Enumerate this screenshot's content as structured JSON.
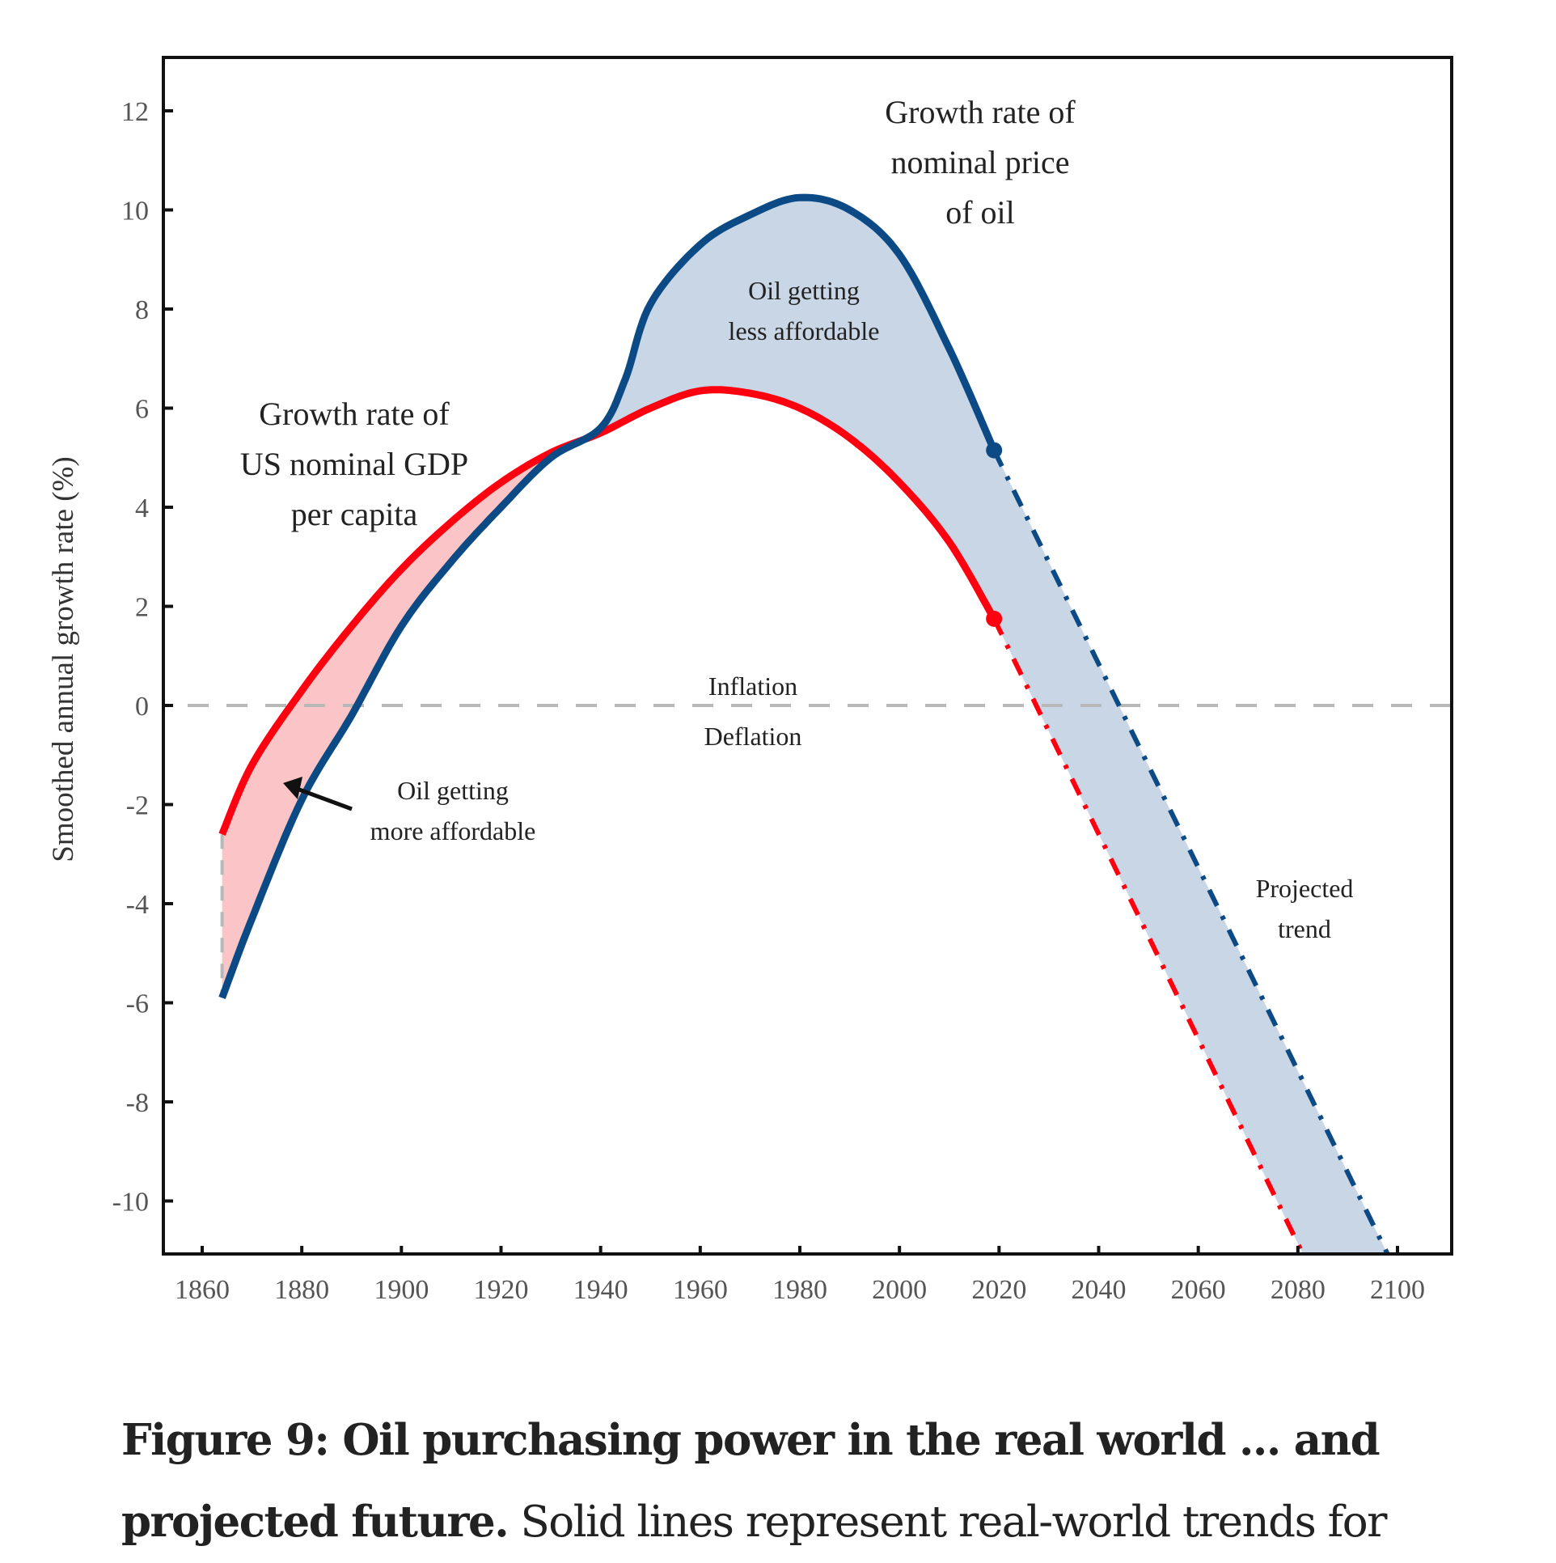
{
  "chart_data": {
    "type": "line",
    "title": "",
    "xlabel": "",
    "ylabel": "Smoothed annual growth rate (%)",
    "xlim": [
      1850,
      2116
    ],
    "ylim": [
      -11.07,
      13.1
    ],
    "x_ticks": [
      1860,
      1880,
      1900,
      1920,
      1940,
      1960,
      1980,
      2000,
      2020,
      2040,
      2060,
      2080,
      2100
    ],
    "y_ticks": [
      12,
      10,
      8,
      6,
      4,
      2,
      0,
      -2,
      -4,
      -6,
      -8,
      -10
    ],
    "grid": false,
    "reference_line": {
      "y": 0,
      "style": "dashed",
      "color": "#b8b8b8",
      "label_above": "Inflation",
      "label_below": "Deflation"
    },
    "series": [
      {
        "name": "Growth rate of US nominal GDP per capita",
        "color": "#ff0010",
        "style": "solid",
        "x": [
          1864,
          1870,
          1880,
          1890,
          1900,
          1910,
          1920,
          1930,
          1940,
          1950,
          1960,
          1970,
          1980,
          1990,
          2000,
          2010,
          2019
        ],
        "y": [
          -2.6,
          -1.2,
          0.3,
          1.6,
          2.75,
          3.7,
          4.5,
          5.1,
          5.5,
          6.0,
          6.35,
          6.3,
          6.0,
          5.4,
          4.5,
          3.3,
          1.75
        ],
        "endpoint_marker": true,
        "projection": {
          "style": "dash-dot",
          "x": [
            2019,
            2081
          ],
          "y": [
            1.75,
            -11.07
          ]
        }
      },
      {
        "name": "Growth rate of nominal price of oil",
        "color": "#0b4a84",
        "style": "solid",
        "x": [
          1864,
          1870,
          1880,
          1890,
          1900,
          1910,
          1920,
          1930,
          1940,
          1945,
          1950,
          1960,
          1970,
          1980,
          1990,
          2000,
          2010,
          2019
        ],
        "y": [
          -5.9,
          -4.3,
          -1.9,
          -0.2,
          1.6,
          2.9,
          4.0,
          5.0,
          5.6,
          6.6,
          8.1,
          9.3,
          9.9,
          10.25,
          10.0,
          9.1,
          7.2,
          5.15
        ],
        "endpoint_marker": true,
        "projection": {
          "style": "dash-dot",
          "x": [
            2019,
            2098
          ],
          "y": [
            5.15,
            -11.07
          ]
        }
      }
    ],
    "fills": [
      {
        "name": "Oil getting more affordable",
        "between": [
          "Growth rate of US nominal GDP per capita",
          "Growth rate of nominal price of oil"
        ],
        "x_range": [
          1864,
          1940
        ],
        "color": "#fbc5c7"
      },
      {
        "name": "Oil getting less affordable",
        "between": [
          "Growth rate of nominal price of oil",
          "Growth rate of US nominal GDP per capita"
        ],
        "x_range": [
          1940,
          2098
        ],
        "color": "#c8d6e5"
      }
    ],
    "annotations": [
      {
        "id": "gdp",
        "lines": [
          "Growth rate of",
          "US nominal GDP",
          "per capita"
        ],
        "at": [
          1890,
          5.7
        ]
      },
      {
        "id": "oil",
        "lines": [
          "Growth rate of",
          "nominal price",
          "of oil"
        ],
        "at": [
          2015,
          11.7
        ]
      },
      {
        "id": "less",
        "lines": [
          "Oil getting",
          "less affordable"
        ],
        "at": [
          1980,
          8.2
        ]
      },
      {
        "id": "more",
        "lines": [
          "Oil getting",
          "more affordable"
        ],
        "at": [
          1910,
          -1.75
        ],
        "arrow_to": [
          1877,
          -1.5
        ]
      },
      {
        "id": "projected",
        "lines": [
          "Projected",
          "trend"
        ],
        "at": [
          2080,
          -3.6
        ]
      }
    ]
  },
  "caption": {
    "bold": "Figure 9: Oil purchasing power in the real world ... and projected future.",
    "text": " Solid lines represent real-world trends for"
  }
}
